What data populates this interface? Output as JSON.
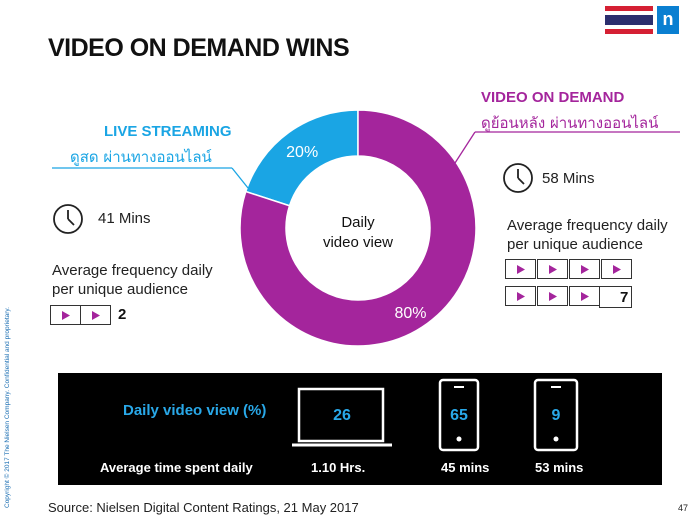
{
  "page": {
    "title": "VIDEO ON DEMAND WINS",
    "copyright": "Copyright © 2017 The Nielsen Company. Confidential and proprietary.",
    "page_number": "47",
    "source": "Source: Nielsen Digital Content Ratings, 21 May  2017",
    "logo_text": "n"
  },
  "colors": {
    "vod": "#a4259c",
    "live": "#1aa5e4",
    "panel_bg": "#000000",
    "panel_accent": "#29a8e8"
  },
  "live": {
    "title": "LIVE STREAMING",
    "thai": "ดูสด ผ่านทางออนไลน์",
    "mins": "41 Mins",
    "freq_line1": "Average frequency daily",
    "freq_line2": "per unique audience",
    "count": "2",
    "icons": [
      "clock-icon",
      "play-icon"
    ]
  },
  "vod": {
    "title": "VIDEO ON DEMAND",
    "thai": "ดูย้อนหลัง ผ่านทางออนไลน์",
    "mins": "58 Mins",
    "freq_line1": "Average frequency daily",
    "freq_line2": "per unique audience",
    "count": "7",
    "icons": [
      "clock-icon",
      "play-icon"
    ]
  },
  "chart_data": {
    "type": "pie",
    "center_label_line1": "Daily",
    "center_label_line2": "video view",
    "categories": [
      "VIDEO ON DEMAND",
      "LIVE STREAMING"
    ],
    "values": [
      80,
      20
    ],
    "value_labels": [
      "80%",
      "20%"
    ],
    "colors": [
      "#a4259c",
      "#1aa5e4"
    ]
  },
  "panel": {
    "title": "Daily video view (%)",
    "row_label": "Average time spent daily",
    "devices": [
      {
        "icon": "laptop-icon",
        "value": "26",
        "time": "1.10 Hrs."
      },
      {
        "icon": "tablet-icon",
        "value": "65",
        "time": "45 mins"
      },
      {
        "icon": "smartphone-icon",
        "value": "9",
        "time": "53 mins"
      }
    ]
  }
}
